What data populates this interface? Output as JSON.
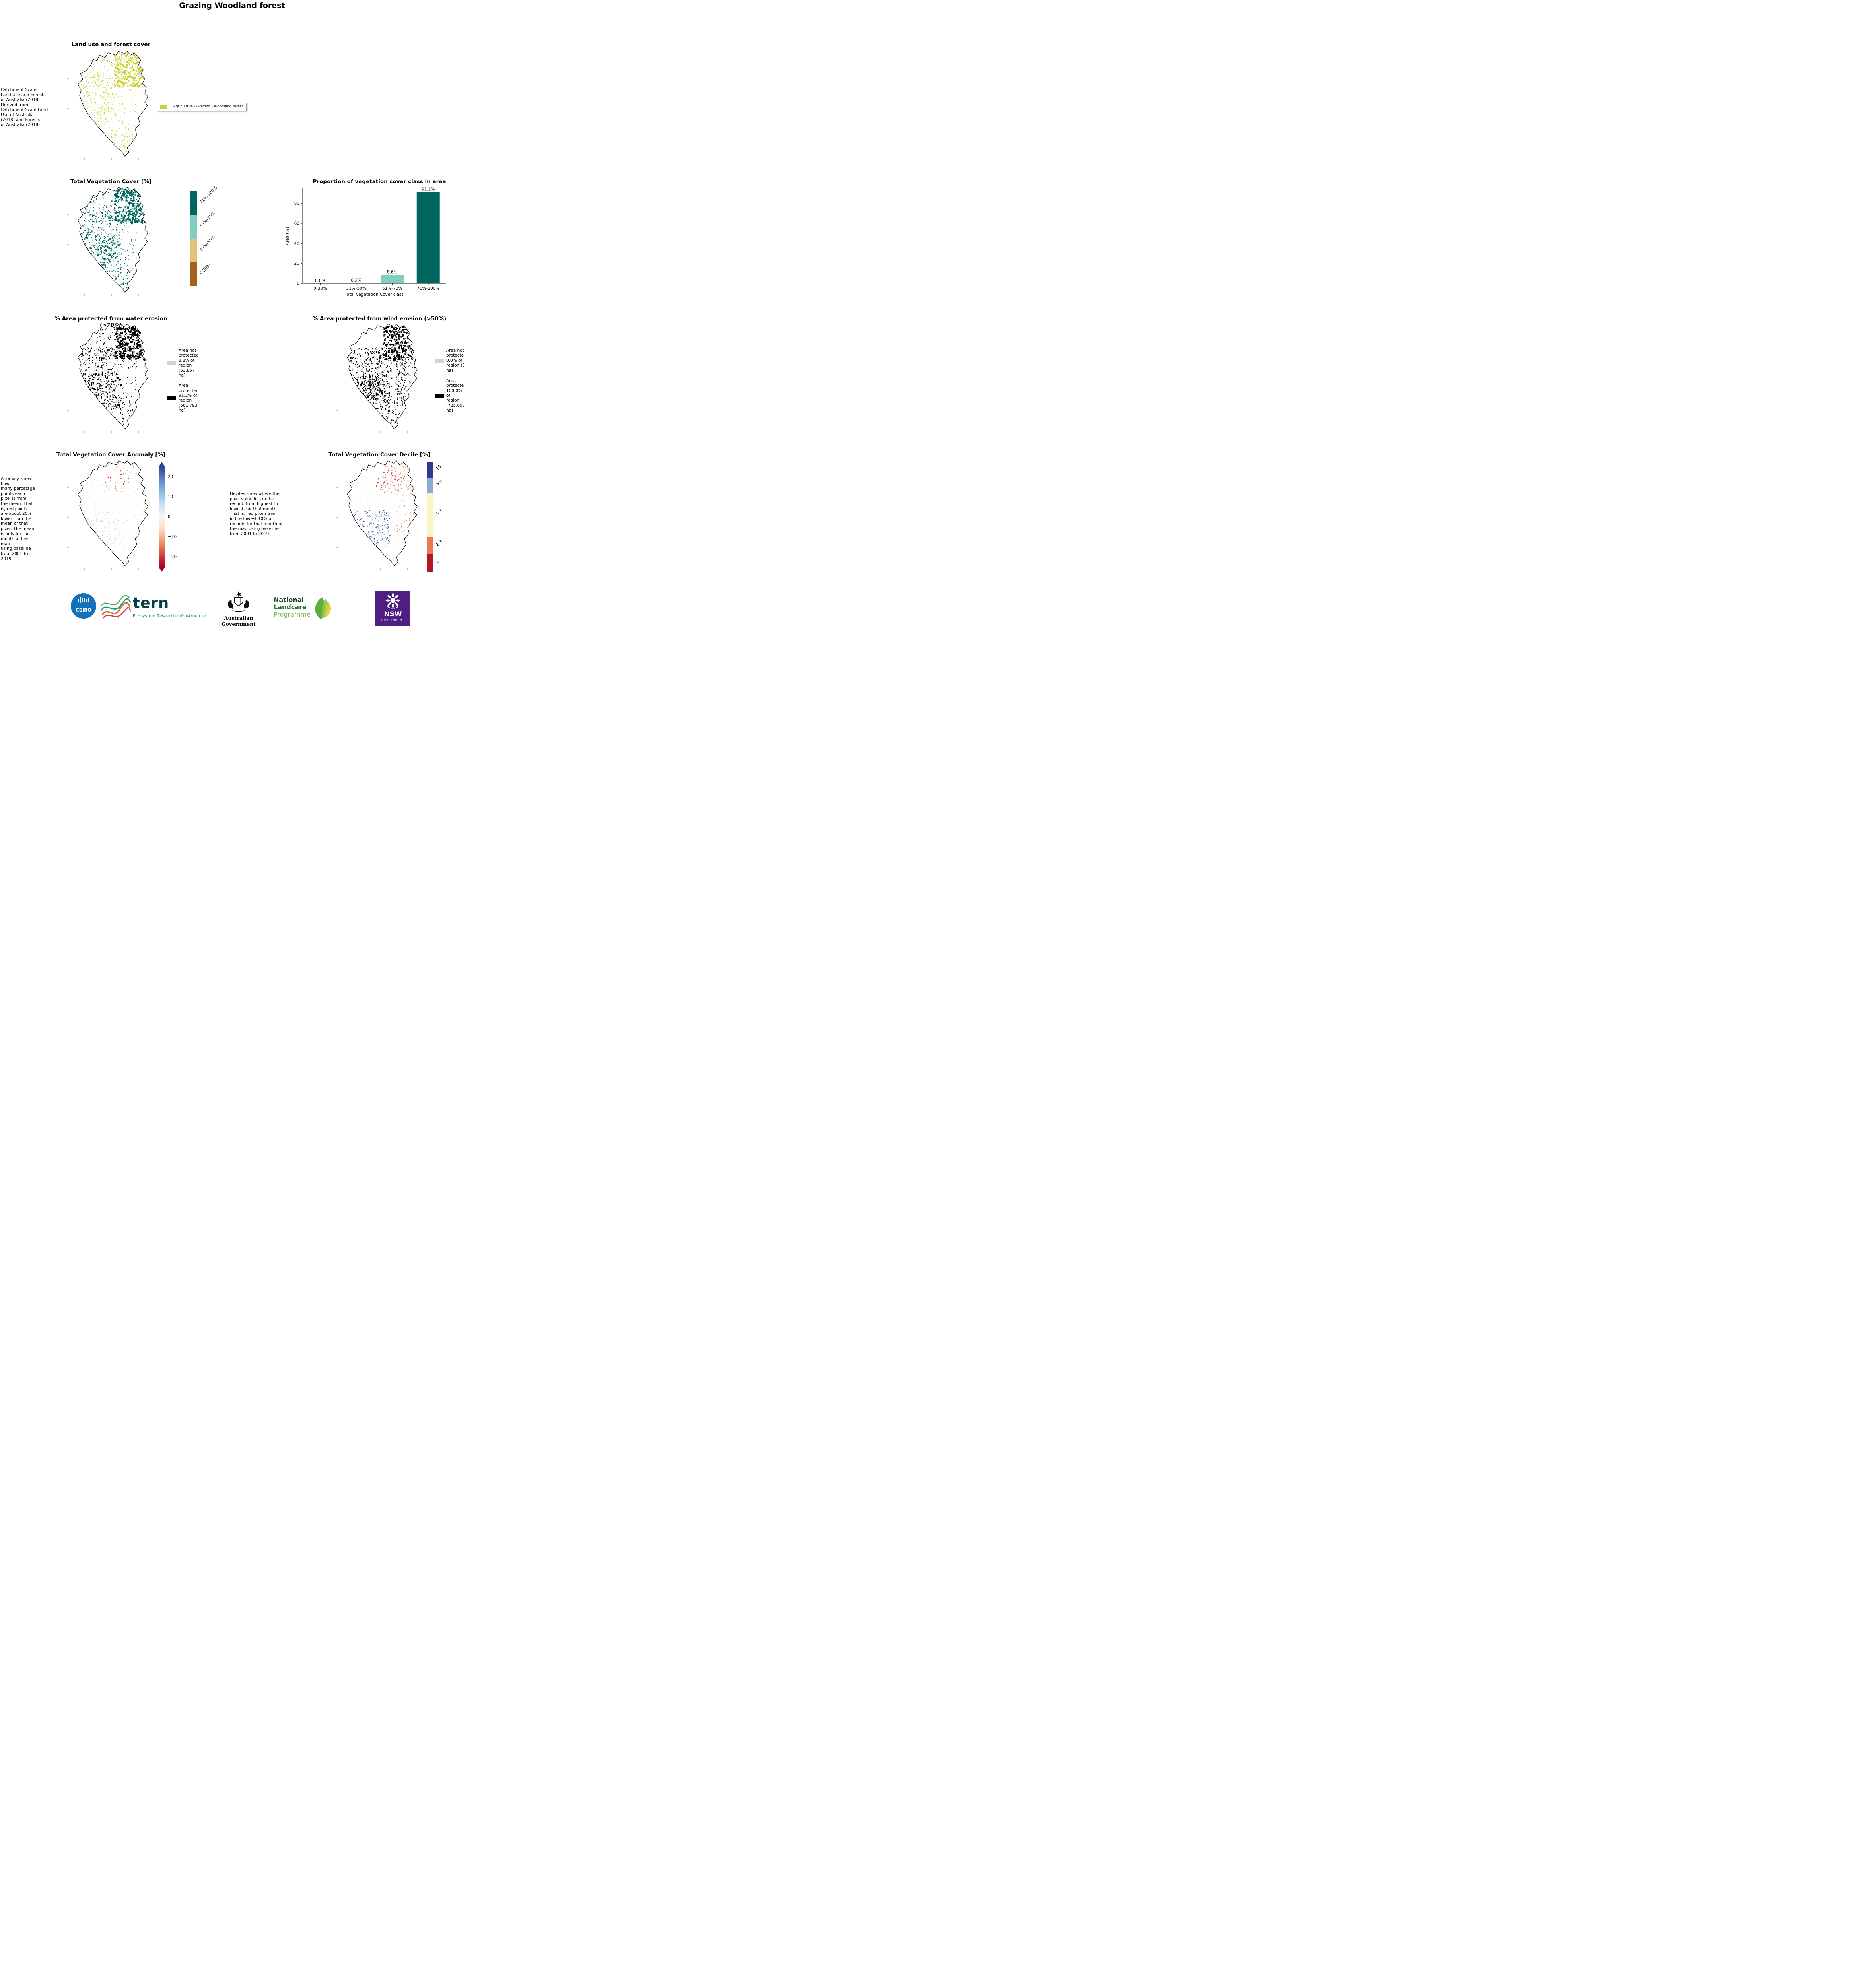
{
  "page_title": "Grazing Woodland forest",
  "panels": {
    "landuse": {
      "title": "Land use and forest cover",
      "note": " Catchment Scale\nLand Use and Forests\nof Australia (2018)\nDerived from\nCatchment Scale Land\nUse of Australia\n(2018) and Forests\nof Australia (2018)",
      "legend": [
        {
          "label": "1 Agriculture - Grazing - Woodland forest",
          "color": "#c8d231"
        }
      ]
    },
    "tvc": {
      "title": "Total Vegetation Cover [%]",
      "colorbar": [
        {
          "label": "71%-100%",
          "color": "#01665e",
          "frac": 0.25
        },
        {
          "label": "51%-70%",
          "color": "#80cdc1",
          "frac": 0.25
        },
        {
          "label": "31%-50%",
          "color": "#dfc27d",
          "frac": 0.25
        },
        {
          "label": "0-30%",
          "color": "#a6611a",
          "frac": 0.25
        }
      ]
    },
    "water": {
      "title": "% Area protected from water erosion (>70%)",
      "legend": [
        {
          "label": "Area not\nprotected\n8.8% of\nregion\n(63,857\nha)",
          "color": "#d3d3d3"
        },
        {
          "label": "Area\nprotected\n91.2% of\nregion\n(661,793\nha)",
          "color": "#000000"
        }
      ]
    },
    "wind": {
      "title": "% Area protected from wind erosion (>50%)",
      "legend": [
        {
          "label": "Area not\nprotected\n0.0% of\nregion (0\nha)",
          "color": "#d3d3d3"
        },
        {
          "label": "Area\nprotected\n100.0% of\nregion\n(725,650\nha)",
          "color": "#000000"
        }
      ]
    },
    "anomaly": {
      "title": "Total Vegetation Cover Anomaly [%]",
      "note": "Anomaly show how\nmany percetage\npoints each\npixel is from\nthe mean. That\nis, red pixels\nare about 20%\nlower than the\nmean of that\npixel. The mean\nis only for the\nmonth of the map\nusing baseline\nfrom 2001 to\n2019.",
      "colorbar_ticks": [
        "20",
        "10",
        "0",
        "−10",
        "−20"
      ],
      "colorbar_top_color": "#30409a",
      "colorbar_bottom_color": "#a50026"
    },
    "decile": {
      "title": "Total Vegetation Cover Decile [%]",
      "note": "Deciles show where the\npixel value lies in the\nrecord, from highest to\nlowest, for that month.\nThat is, red pixels are\nin the lowest 10% of\nrecords for that month of\nthe map using baseline\nfrom 2001 to 2019.",
      "colorbar": [
        {
          "label": "10",
          "color": "#313695",
          "frac": 0.14
        },
        {
          "label": "8-9",
          "color": "#8fa9d4",
          "frac": 0.14
        },
        {
          "label": "4-7",
          "color": "#f7f7c5",
          "frac": 0.4
        },
        {
          "label": "2-3",
          "color": "#ee7a4f",
          "frac": 0.16
        },
        {
          "label": "1",
          "color": "#b5152b",
          "frac": 0.16
        }
      ]
    }
  },
  "chart_data": {
    "type": "bar",
    "title": "Proportion of vegetation cover class in area",
    "categories": [
      "0-30%",
      "31%-50%",
      "51%-70%",
      "71%-100%"
    ],
    "values": [
      0.0,
      0.2,
      8.6,
      91.2
    ],
    "value_labels": [
      "0.0%",
      "0.2%",
      "8.6%",
      "91.2%"
    ],
    "bar_colors": [
      "#a6611a",
      "#dfc27d",
      "#80cdc1",
      "#01665e"
    ],
    "xlabel": "Total Vegetation Cover class",
    "ylabel": "Area (%)",
    "ylim": [
      0,
      95
    ],
    "yticks": [
      0,
      20,
      40,
      60,
      80
    ],
    "legend_position": "none",
    "grid": false
  },
  "maps": {
    "landuse": {
      "seed": 7,
      "layers": [
        {
          "region": "ne",
          "count": 420,
          "min": 1.2,
          "max": 4.0,
          "color": "#c8d231"
        },
        {
          "region": "nw",
          "count": 110,
          "min": 1.0,
          "max": 2.5,
          "color": "#c8d231"
        },
        {
          "region": "west",
          "count": 240,
          "min": 0.8,
          "max": 3.0,
          "color": "#c8d231"
        },
        {
          "region": "center",
          "count": 150,
          "min": 0.8,
          "max": 2.5,
          "color": "#c8d231"
        },
        {
          "region": "south",
          "count": 60,
          "min": 1.0,
          "max": 3.0,
          "color": "#c8d231"
        }
      ]
    },
    "tvc": {
      "seed": 13,
      "layers": [
        {
          "region": "ne",
          "count": 480,
          "min": 1.2,
          "max": 4.5,
          "color": "#01665e"
        },
        {
          "region": "nw",
          "count": 110,
          "min": 0.8,
          "max": 2.5,
          "color": "#01665e"
        },
        {
          "region": "west",
          "count": 260,
          "min": 0.8,
          "max": 3.0,
          "color": "#01665e"
        },
        {
          "region": "sw",
          "count": 220,
          "min": 1.0,
          "max": 3.5,
          "color": "#01665e"
        },
        {
          "region": "center",
          "count": 160,
          "min": 0.8,
          "max": 2.5,
          "color": "#01665e"
        },
        {
          "region": "south",
          "count": 70,
          "min": 1.0,
          "max": 3.0,
          "color": "#01665e"
        }
      ]
    },
    "water": {
      "seed": 17,
      "layers": [
        {
          "region": "ne",
          "count": 480,
          "min": 1.2,
          "max": 4.5,
          "color": "#000000"
        },
        {
          "region": "nw",
          "count": 110,
          "min": 0.8,
          "max": 2.5,
          "color": "#000000"
        },
        {
          "region": "west",
          "count": 260,
          "min": 0.8,
          "max": 3.0,
          "color": "#000000"
        },
        {
          "region": "sw",
          "count": 220,
          "min": 1.0,
          "max": 3.5,
          "color": "#000000"
        },
        {
          "region": "center",
          "count": 160,
          "min": 0.8,
          "max": 2.5,
          "color": "#000000"
        },
        {
          "region": "south",
          "count": 70,
          "min": 1.0,
          "max": 3.0,
          "color": "#000000"
        }
      ]
    },
    "wind": {
      "seed": 23,
      "layers": [
        {
          "region": "ne",
          "count": 420,
          "min": 1.2,
          "max": 4.5,
          "color": "#000000"
        },
        {
          "region": "center",
          "count": 330,
          "min": 0.8,
          "max": 3.0,
          "color": "#000000"
        },
        {
          "region": "west",
          "count": 280,
          "min": 0.8,
          "max": 3.0,
          "color": "#000000"
        },
        {
          "region": "sw",
          "count": 240,
          "min": 1.0,
          "max": 3.5,
          "color": "#000000"
        },
        {
          "region": "east",
          "count": 160,
          "min": 0.8,
          "max": 2.5,
          "color": "#000000"
        },
        {
          "region": "south",
          "count": 80,
          "min": 1.0,
          "max": 3.0,
          "color": "#000000"
        }
      ]
    },
    "anomaly": {
      "seed": 31,
      "layers": [
        {
          "region": "all",
          "count": 700,
          "min": 0.6,
          "max": 1.8,
          "color": "#f1e9c6"
        },
        {
          "region": "all",
          "count": 130,
          "min": 0.8,
          "max": 2.0,
          "color": "#f0cf9a"
        },
        {
          "region": "nc",
          "count": 28,
          "min": 1.0,
          "max": 3.2,
          "color": "#d7301f"
        },
        {
          "region": "ne",
          "count": 30,
          "min": 0.8,
          "max": 2.0,
          "color": "#e89a5f"
        },
        {
          "region": "sw",
          "count": 150,
          "min": 0.8,
          "max": 2.2,
          "color": "#cfe0ef"
        },
        {
          "region": "sw",
          "count": 60,
          "min": 0.8,
          "max": 2.0,
          "color": "#a9c8e1"
        }
      ]
    },
    "decile": {
      "seed": 41,
      "layers": [
        {
          "region": "all",
          "count": 600,
          "min": 0.6,
          "max": 1.8,
          "color": "#f2eebc"
        },
        {
          "region": "ne",
          "count": 140,
          "min": 0.8,
          "max": 2.4,
          "color": "#ec8a5a"
        },
        {
          "region": "ne",
          "count": 60,
          "min": 0.8,
          "max": 2.2,
          "color": "#c43c39"
        },
        {
          "region": "nc",
          "count": 25,
          "min": 1.0,
          "max": 2.6,
          "color": "#d7301f"
        },
        {
          "region": "sw",
          "count": 210,
          "min": 0.8,
          "max": 2.6,
          "color": "#3a4fa8"
        },
        {
          "region": "sw",
          "count": 90,
          "min": 0.8,
          "max": 2.0,
          "color": "#7d95cc"
        },
        {
          "region": "east",
          "count": 70,
          "min": 0.8,
          "max": 2.0,
          "color": "#ee7a4f"
        },
        {
          "region": "all",
          "count": 60,
          "min": 0.6,
          "max": 1.6,
          "color": "#8fa9d4"
        }
      ]
    }
  },
  "footer": {
    "csiro": "CSIRO",
    "tern": "tern",
    "tern_tagline": "Ecosystem Research Infrastructure",
    "aus_gov": "Australian Government",
    "landcare_line1": "National",
    "landcare_line2": "Landcare",
    "landcare_line3": "Programme",
    "nsw": "NSW",
    "nsw_sub": "GOVERNMENT"
  }
}
